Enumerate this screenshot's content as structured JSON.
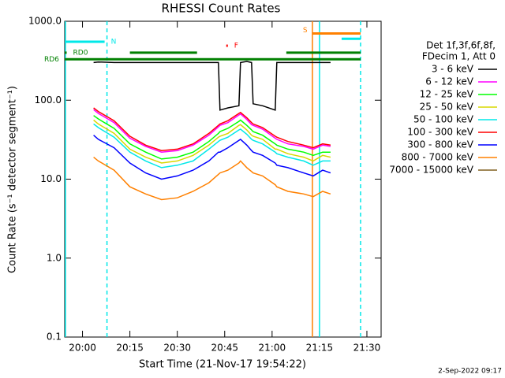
{
  "chart_data": {
    "type": "line",
    "title": "RHESSI Count Rates",
    "xlabel": "Start Time (21-Nov-17 19:54:22)",
    "ylabel": "Count Rate (s⁻¹ detector segment⁻¹)",
    "footer": "2-Sep-2022 09:17",
    "legend_header": [
      "Det 1f,3f,6f,8f,",
      "FDecim 1, Att 0"
    ],
    "log_y": true,
    "xlim": [
      54.37,
      154.5
    ],
    "ylim": [
      0.1,
      1000
    ],
    "xticks": [
      {
        "value": 60,
        "label": "20:00"
      },
      {
        "value": 75,
        "label": "20:15"
      },
      {
        "value": 90,
        "label": "20:30"
      },
      {
        "value": 105,
        "label": "20:45"
      },
      {
        "value": 120,
        "label": "21:00"
      },
      {
        "value": 135,
        "label": "21:15"
      },
      {
        "value": 150,
        "label": "21:30"
      }
    ],
    "yticks": [
      0.1,
      {
        "value": 1,
        "label": "1.0"
      },
      {
        "value": 10,
        "label": "10.0"
      },
      {
        "value": 100,
        "label": "100.0"
      },
      {
        "value": 1000,
        "label": "1000.0"
      }
    ],
    "x": [
      63.5,
      65,
      70,
      75,
      80,
      85,
      90,
      95,
      100,
      103,
      103.5,
      106,
      109.5,
      110,
      112,
      113.5,
      114,
      117,
      121,
      121.5,
      125,
      130,
      133,
      136,
      138.5
    ],
    "series": [
      {
        "name": "3 - 6 keV",
        "color": "#000000",
        "values": [
          300,
          305,
          300,
          300,
          300,
          300,
          300,
          300,
          300,
          300,
          75,
          80,
          85,
          300,
          310,
          300,
          90,
          85,
          75,
          300,
          300,
          300,
          300,
          300,
          300
        ]
      },
      {
        "name": "6 - 12 keV",
        "color": "#ff00ff",
        "values": [
          76,
          68,
          52,
          33,
          26,
          22,
          23,
          27,
          36,
          46,
          48,
          52,
          65,
          67,
          57,
          49,
          48,
          43,
          33,
          32,
          28,
          26,
          24,
          27,
          26
        ]
      },
      {
        "name": "12 - 25 keV",
        "color": "#00ff00",
        "values": [
          64,
          58,
          44,
          28,
          22,
          18,
          19,
          22,
          30,
          38,
          40,
          44,
          54,
          56,
          48,
          42,
          40,
          36,
          28,
          27,
          24,
          22,
          20,
          22,
          22
        ]
      },
      {
        "name": "25 - 50 keV",
        "color": "#d8d800",
        "values": [
          56,
          50,
          38,
          24,
          19,
          16,
          17,
          20,
          27,
          34,
          35,
          38,
          48,
          49,
          42,
          36,
          35,
          32,
          24,
          24,
          21,
          19,
          17,
          20,
          19
        ]
      },
      {
        "name": "50 - 100 keV",
        "color": "#00e8e8",
        "values": [
          50,
          45,
          34,
          22,
          17,
          14,
          15,
          17,
          24,
          30,
          31,
          34,
          42,
          43,
          37,
          32,
          31,
          28,
          22,
          21,
          19,
          17,
          15,
          17,
          17
        ]
      },
      {
        "name": "100 - 300 keV",
        "color": "#ff0000",
        "values": [
          80,
          72,
          55,
          35,
          27,
          23,
          24,
          28,
          38,
          48,
          50,
          55,
          68,
          70,
          60,
          52,
          50,
          45,
          35,
          34,
          30,
          27,
          25,
          28,
          27
        ]
      },
      {
        "name": "300 - 800 keV",
        "color": "#0000ff",
        "values": [
          36,
          32,
          25,
          16,
          12,
          10,
          11,
          13,
          17,
          22,
          22,
          25,
          31,
          32,
          27,
          23,
          22,
          20,
          16,
          15,
          14,
          12,
          11,
          13,
          12
        ]
      },
      {
        "name": "800 - 7000 keV",
        "color": "#ff8000",
        "values": [
          19,
          17,
          13,
          8,
          6.5,
          5.5,
          5.8,
          7,
          9,
          11.5,
          12,
          13,
          16,
          17,
          14,
          12.5,
          12,
          11,
          8.5,
          8,
          7,
          6.5,
          6,
          7,
          6.5
        ]
      },
      {
        "name": "7000 - 15000 keV",
        "color": "#806020",
        "values": [
          null,
          null,
          null,
          null,
          null,
          null,
          null,
          null,
          null,
          null,
          null,
          null,
          null,
          null,
          null,
          null,
          null,
          null,
          null,
          null,
          null,
          null,
          null,
          null,
          null
        ]
      }
    ],
    "vlines": [
      {
        "x": 54.6,
        "color": "#00e8e8",
        "dashed": false
      },
      {
        "x": 67.75,
        "color": "#00e8e8",
        "dashed": true
      },
      {
        "x": 132.75,
        "color": "#ff8000",
        "dashed": false
      },
      {
        "x": 135,
        "color": "#00e8e8",
        "dashed": false
      },
      {
        "x": 148,
        "color": "#00e8e8",
        "dashed": true
      }
    ],
    "flags": [
      {
        "label": "N",
        "color": "#00e8e8",
        "y": 550,
        "x": [
          54.4,
          67
        ]
      },
      {
        "label": "RD0",
        "color": "#008000",
        "y": 400,
        "x": [
          54.4,
          55
        ]
      },
      {
        "label": "RD6",
        "color": "#008000",
        "y": 330,
        "x": [
          54.4,
          148
        ]
      },
      {
        "label": "F",
        "color": "#ff0000",
        "y": 490,
        "x": [
          105.5,
          106
        ]
      },
      {
        "label": "S",
        "color": "#ff8000",
        "y": 700,
        "x": [
          132.75,
          148
        ]
      }
    ],
    "extra_segments": [
      {
        "color": "#008000",
        "y": 400,
        "x": [
          75,
          96.25
        ]
      },
      {
        "color": "#008000",
        "y": 400,
        "x": [
          124.5,
          148
        ]
      },
      {
        "color": "#00e8e8",
        "y": 600,
        "x": [
          142,
          148
        ]
      }
    ]
  }
}
